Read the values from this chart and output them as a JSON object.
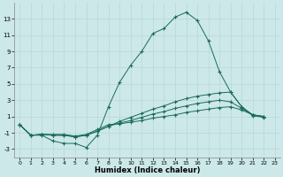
{
  "xlabel": "Humidex (Indice chaleur)",
  "bg_color": "#cce8e8",
  "line_color": "#1a6b5a",
  "grid_color": "#b8d8d8",
  "ylim": [
    -4,
    15
  ],
  "xlim": [
    -0.5,
    23.5
  ],
  "yticks": [
    -3,
    -1,
    1,
    3,
    5,
    7,
    9,
    11,
    13
  ],
  "xticks": [
    0,
    1,
    2,
    3,
    4,
    5,
    6,
    7,
    8,
    9,
    10,
    11,
    12,
    13,
    14,
    15,
    16,
    17,
    18,
    19,
    20,
    21,
    22,
    23
  ],
  "lines": [
    {
      "x": [
        0,
        1,
        2,
        3,
        4,
        5,
        6,
        7,
        8,
        9,
        10,
        11,
        12,
        13,
        14,
        15,
        16,
        17,
        18,
        19,
        20,
        21,
        22
      ],
      "y": [
        0,
        -1.3,
        -1.3,
        -2.0,
        -2.3,
        -2.3,
        -2.8,
        -1.3,
        2.2,
        5.2,
        7.3,
        9.0,
        11.2,
        11.8,
        13.2,
        13.8,
        12.8,
        10.3,
        6.5,
        4.0,
        2.2,
        1.1,
        0.9
      ]
    },
    {
      "x": [
        0,
        1,
        2,
        3,
        4,
        5,
        6,
        7,
        8,
        9,
        10,
        11,
        12,
        13,
        14,
        15,
        16,
        17,
        18,
        19,
        20,
        21,
        22
      ],
      "y": [
        0,
        -1.3,
        -1.2,
        -1.3,
        -1.3,
        -1.5,
        -1.3,
        -0.8,
        -0.2,
        0.4,
        0.9,
        1.4,
        1.9,
        2.3,
        2.8,
        3.2,
        3.5,
        3.7,
        3.9,
        4.0,
        2.2,
        1.2,
        1.0
      ]
    },
    {
      "x": [
        0,
        1,
        2,
        3,
        4,
        5,
        6,
        7,
        8,
        9,
        10,
        11,
        12,
        13,
        14,
        15,
        16,
        17,
        18,
        19,
        20,
        21,
        22
      ],
      "y": [
        0,
        -1.3,
        -1.2,
        -1.3,
        -1.3,
        -1.5,
        -1.3,
        -0.8,
        -0.2,
        0.2,
        0.5,
        0.9,
        1.3,
        1.6,
        2.0,
        2.3,
        2.6,
        2.8,
        3.0,
        2.8,
        2.0,
        1.2,
        1.0
      ]
    },
    {
      "x": [
        0,
        1,
        2,
        3,
        4,
        5,
        6,
        7,
        8,
        9,
        10,
        11,
        12,
        13,
        14,
        15,
        16,
        17,
        18,
        19,
        20,
        21,
        22
      ],
      "y": [
        0,
        -1.3,
        -1.2,
        -1.2,
        -1.2,
        -1.4,
        -1.2,
        -0.6,
        0.0,
        0.1,
        0.3,
        0.5,
        0.8,
        1.0,
        1.2,
        1.5,
        1.7,
        1.9,
        2.1,
        2.2,
        1.8,
        1.2,
        1.0
      ]
    }
  ]
}
